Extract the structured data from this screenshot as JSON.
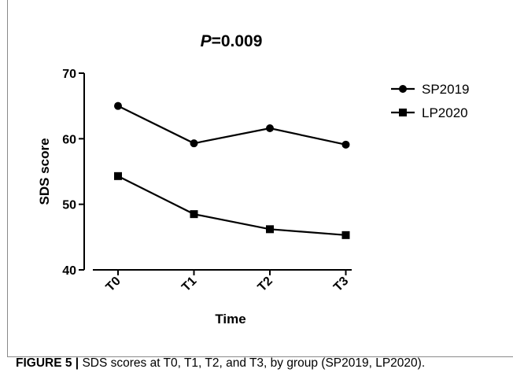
{
  "chart_data": {
    "type": "line",
    "title_italic": "P",
    "title_rest": "=0.009",
    "xlabel": "Time",
    "ylabel": "SDS score",
    "categories": [
      "T0",
      "T1",
      "T2",
      "T3"
    ],
    "ylim": [
      40,
      70
    ],
    "yticks": [
      40,
      50,
      60,
      70
    ],
    "grid": false,
    "legend_position": "top-right",
    "series": [
      {
        "name": "SP2019",
        "marker": "circle",
        "values": [
          65.0,
          59.3,
          61.6,
          59.1
        ]
      },
      {
        "name": "LP2020",
        "marker": "square",
        "values": [
          54.3,
          48.5,
          46.2,
          45.3
        ]
      }
    ]
  },
  "caption": {
    "label": "FIGURE 5 |",
    "text": " SDS scores at T0, T1, T2, and T3, by group (SP2019, LP2020)."
  },
  "colors": {
    "line": "#000000",
    "frame": "#8a8a8a"
  }
}
